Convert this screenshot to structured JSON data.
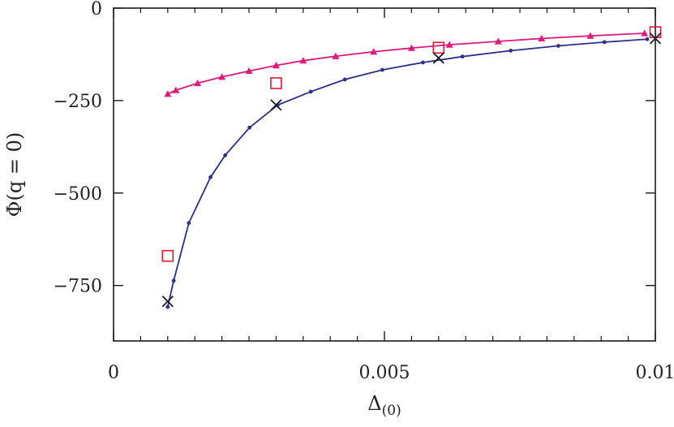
{
  "chart_data": {
    "type": "scatter",
    "title": "",
    "xlabel": "Δ(0)",
    "ylabel": "Φ(q = 0)",
    "xlim": [
      0,
      0.01
    ],
    "ylim": [
      -900,
      0
    ],
    "x_ticks": [
      0,
      0.005,
      0.01
    ],
    "x_tick_labels": [
      "0",
      "0.005",
      "0.01"
    ],
    "x_minor_ticks": [
      0.0005,
      0.001,
      0.0015,
      0.002,
      0.0025,
      0.003,
      0.0035,
      0.004,
      0.0045,
      0.0055,
      0.006,
      0.0065,
      0.007,
      0.0075,
      0.008,
      0.0085,
      0.009,
      0.0095
    ],
    "y_ticks": [
      0,
      -250,
      -500,
      -750
    ],
    "y_tick_labels": [
      "0",
      "−250",
      "−500",
      "−750"
    ],
    "grid": false,
    "legend": "none",
    "series": [
      {
        "marker": "triangle-line",
        "color": "#e0197d",
        "x": [
          0.001,
          0.00115,
          0.00155,
          0.002,
          0.0025,
          0.003,
          0.0035,
          0.0041,
          0.0048,
          0.0055,
          0.0062,
          0.0071,
          0.0079,
          0.0088,
          0.0098
        ],
        "y": [
          -232,
          -222,
          -203,
          -186,
          -170,
          -155,
          -142,
          -130,
          -118,
          -108,
          -99,
          -90,
          -82,
          -75,
          -68
        ]
      },
      {
        "marker": "dot-line",
        "color": "#2b2f8f",
        "x": [
          0.001,
          0.00111,
          0.00139,
          0.00179,
          0.00206,
          0.00251,
          0.00303,
          0.00364,
          0.00427,
          0.00496,
          0.00571,
          0.00644,
          0.00733,
          0.00821,
          0.00906,
          0.00985
        ],
        "y": [
          -808,
          -737,
          -581,
          -457,
          -398,
          -323,
          -262,
          -226,
          -193,
          -167,
          -147,
          -131,
          -115,
          -102,
          -92,
          -84
        ]
      },
      {
        "marker": "open-square",
        "color": "#e0192e",
        "x": [
          0.001,
          0.003,
          0.006,
          0.01
        ],
        "y": [
          -670,
          -203,
          -107,
          -65
        ]
      },
      {
        "marker": "cross",
        "color": "#1a1a2e",
        "x": [
          0.001,
          0.003,
          0.006,
          0.01
        ],
        "y": [
          -793,
          -262,
          -135,
          -82
        ]
      }
    ]
  }
}
